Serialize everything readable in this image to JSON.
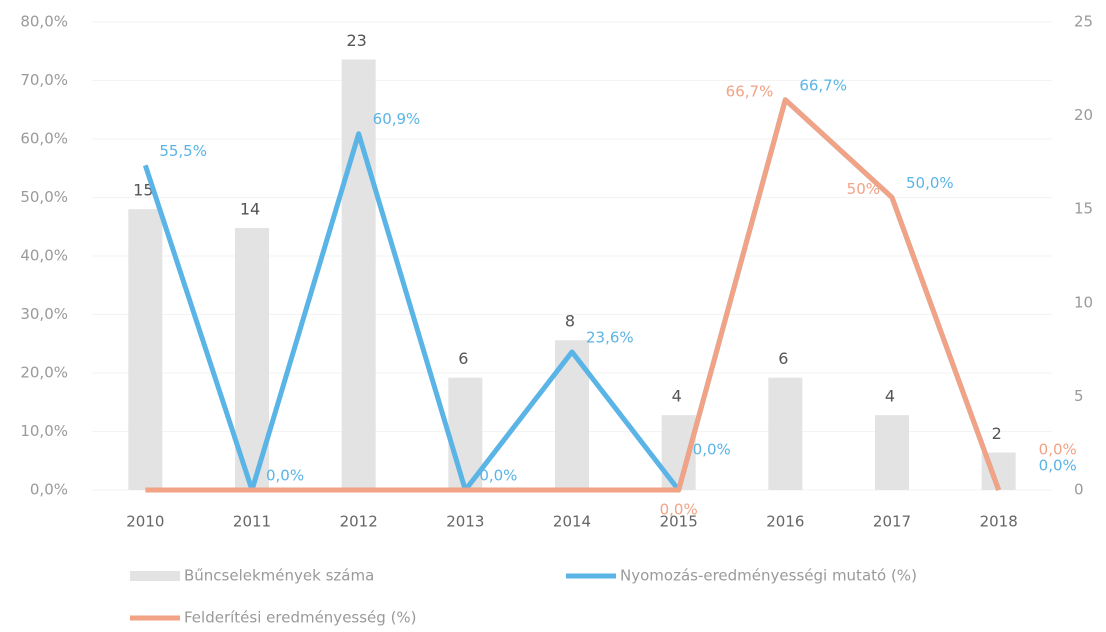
{
  "chart_data": {
    "type": "bar-line",
    "categories": [
      "2010",
      "2011",
      "2012",
      "2013",
      "2014",
      "2015",
      "2016",
      "2017",
      "2018"
    ],
    "series": [
      {
        "name": "Bűncselekmények száma",
        "type": "bar",
        "axis": "y2",
        "color": "#e3e3e3",
        "values": [
          15,
          14,
          23,
          6,
          8,
          4,
          6,
          4,
          2
        ]
      },
      {
        "name": "Nyomozás-eredményességi mutató (%)",
        "type": "line",
        "axis": "y",
        "color": "#5ab4e6",
        "values": [
          55.5,
          0,
          60.9,
          0,
          23.6,
          0,
          66.7,
          50.0,
          0
        ],
        "value_labels": [
          "55,5%",
          "0,0%",
          "60,9%",
          "0,0%",
          "23,6%",
          "0,0%",
          "66,7%",
          "50,0%",
          "0,0%"
        ]
      },
      {
        "name": "Felderítési eredményesség (%)",
        "type": "line",
        "axis": "y",
        "color": "#f2a285",
        "values": [
          0,
          0,
          0,
          0,
          0,
          0,
          66.7,
          50,
          0
        ],
        "value_labels": [
          null,
          null,
          null,
          null,
          null,
          "0,0%",
          "66,7%",
          "50%",
          "0,0%"
        ]
      }
    ],
    "ylim": [
      0,
      80
    ],
    "yticks": [
      {
        "value": 0,
        "label": "0,0%"
      },
      {
        "value": 10,
        "label": "10,0%"
      },
      {
        "value": 20,
        "label": "20,0%"
      },
      {
        "value": 30,
        "label": "30,0%"
      },
      {
        "value": 40,
        "label": "40,0%"
      },
      {
        "value": 50,
        "label": "50,0%"
      },
      {
        "value": 60,
        "label": "60,0%"
      },
      {
        "value": 70,
        "label": "70,0%"
      },
      {
        "value": 80,
        "label": "80,0%"
      }
    ],
    "y2lim": [
      0,
      25
    ],
    "y2ticks": [
      0,
      5,
      10,
      15,
      20,
      25
    ],
    "grid": true
  }
}
